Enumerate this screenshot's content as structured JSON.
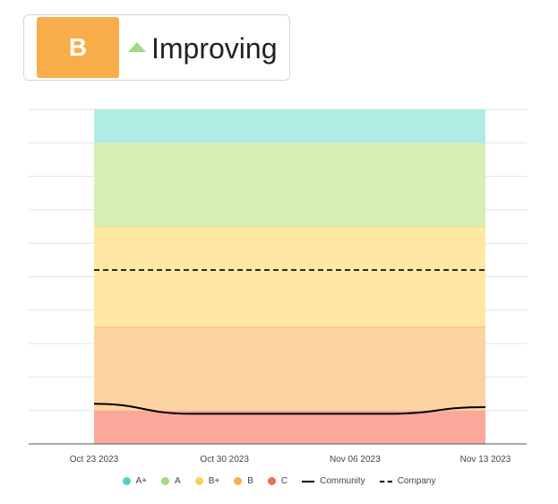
{
  "header": {
    "grade": "B",
    "grade_color": "#f9ad4a",
    "trend_icon": "triangle-up-icon",
    "trend_color": "#a6d785",
    "trend_label": "Improving"
  },
  "chart_data": {
    "type": "area",
    "x_tick_labels": [
      "Oct 23 2023",
      "Oct 30 2023",
      "Nov 06 2023",
      "Nov 13 2023"
    ],
    "grid": true,
    "legend_position": "bottom",
    "bands": [
      {
        "name": "C",
        "from": 0,
        "to": 1.0,
        "color": "#f9a89a"
      },
      {
        "name": "B",
        "from": 1.0,
        "to": 3.5,
        "color": "#fdd3a2",
        "line": "#f9b25e"
      },
      {
        "name": "B+",
        "from": 3.5,
        "to": 6.5,
        "color": "#ffe8a3",
        "line": "#f8d45e"
      },
      {
        "name": "A",
        "from": 6.5,
        "to": 9.0,
        "color": "#d5efb6"
      },
      {
        "name": "A+",
        "from": 9.0,
        "to": 10.0,
        "color": "#b0ebe4"
      }
    ],
    "ylim": [
      0,
      10
    ],
    "series": [
      {
        "name": "Community",
        "style": "solid",
        "x": [
          0,
          0.25,
          0.5,
          0.75,
          1.0
        ],
        "values": [
          1.2,
          0.9,
          0.9,
          0.9,
          1.1
        ]
      },
      {
        "name": "Company",
        "style": "dashed",
        "x": [
          0,
          1.0
        ],
        "values": [
          5.2,
          5.2
        ]
      }
    ],
    "legend": [
      {
        "label": "A+",
        "kind": "dot",
        "color": "#4fd1cc"
      },
      {
        "label": "A",
        "kind": "dot",
        "color": "#a6d785"
      },
      {
        "label": "B+",
        "kind": "dot",
        "color": "#f8d45e"
      },
      {
        "label": "B",
        "kind": "dot",
        "color": "#f9ad4a"
      },
      {
        "label": "C",
        "kind": "dot",
        "color": "#f26b52"
      },
      {
        "label": "Community",
        "kind": "line"
      },
      {
        "label": "Company",
        "kind": "dashed"
      }
    ]
  }
}
